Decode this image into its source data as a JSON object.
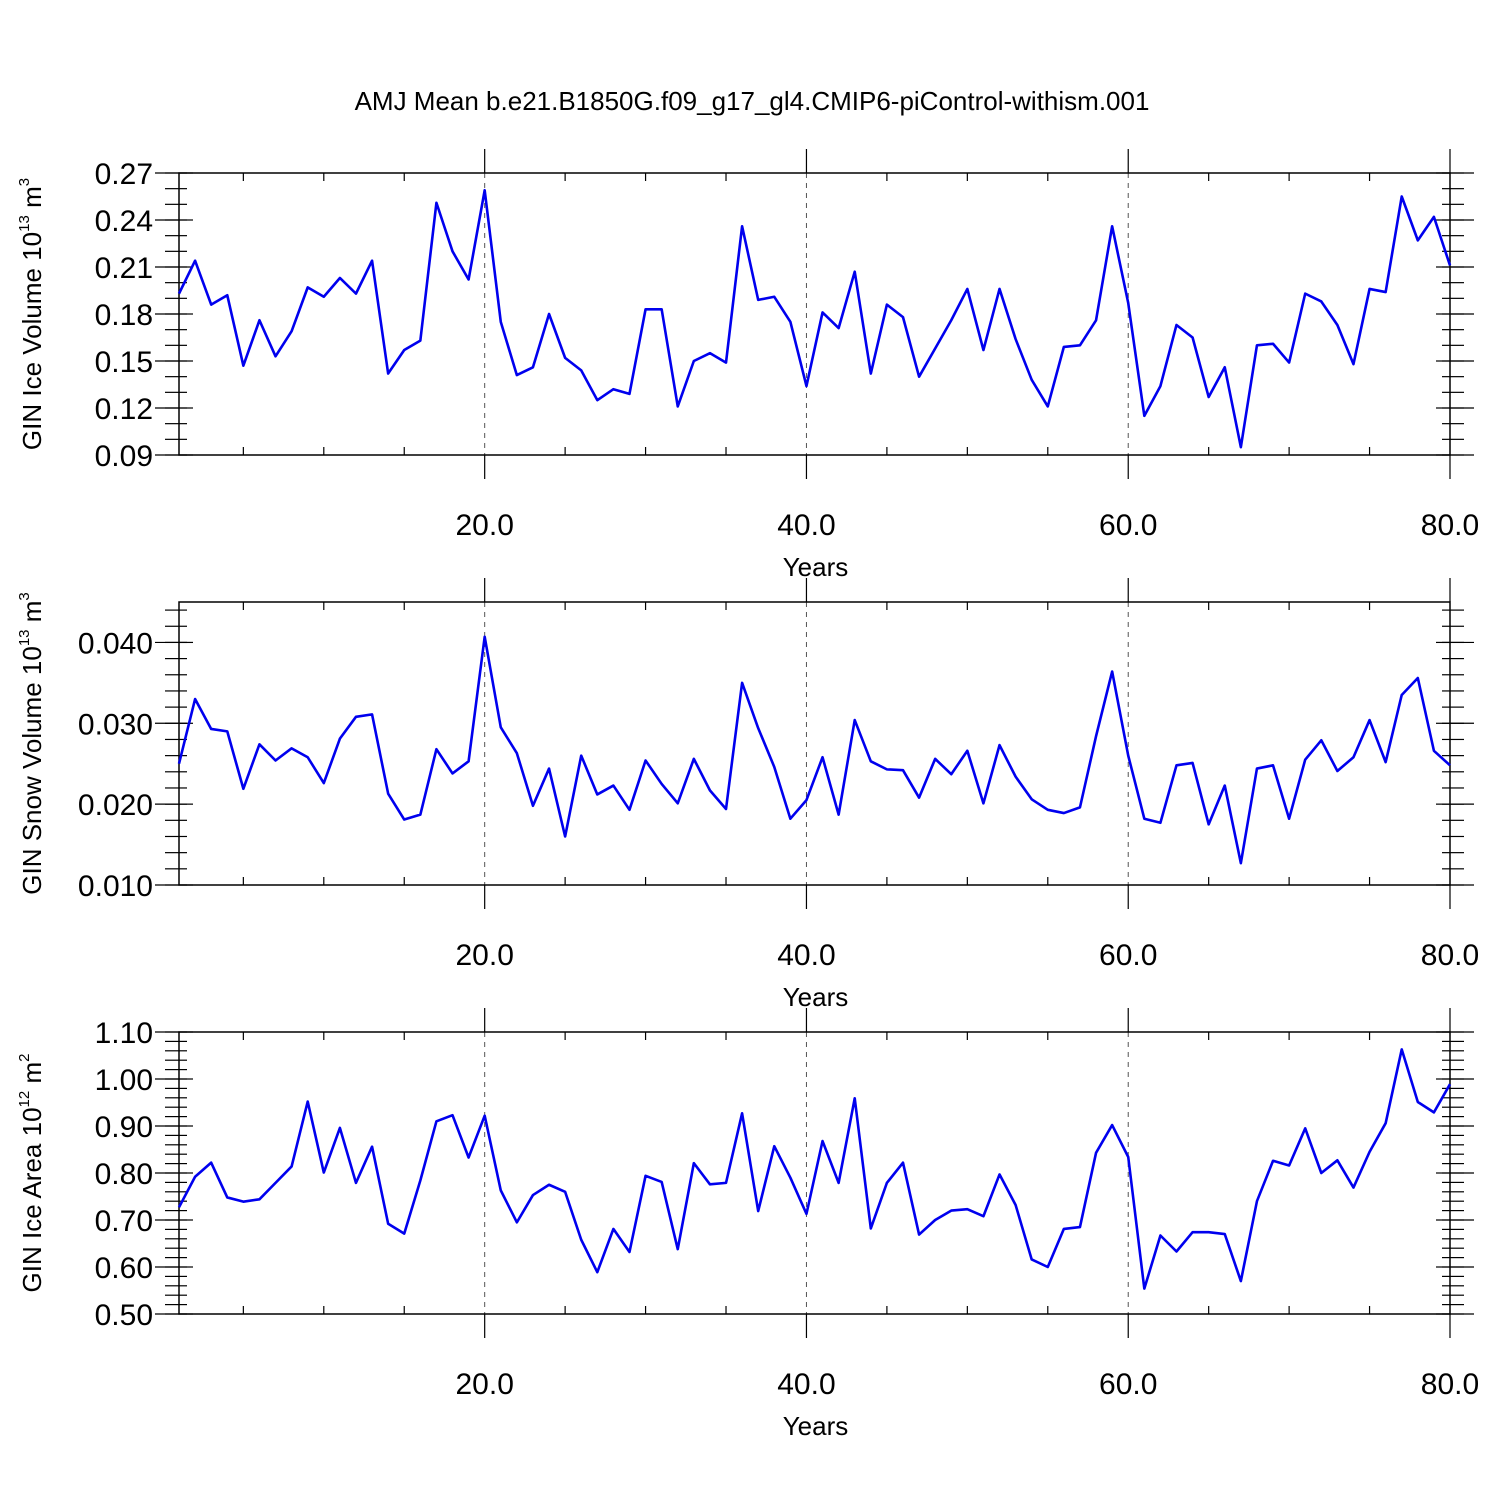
{
  "chart_data": {
    "type": "line",
    "title": "AMJ Mean b.e21.B1850G.f09_g17_gl4.CMIP6-piControl-withism.001",
    "line_color": "#0000ee",
    "grid": "dashed vertical lines at major x ticks",
    "panels": [
      {
        "ylabel": "GIN Ice Volume 10",
        "ylabel_exp": "13",
        "ylabel_unit": " m",
        "ylabel_unit_exp": "3",
        "xlabel": "Years",
        "xlim": [
          1,
          80
        ],
        "ylim": [
          0.09,
          0.27
        ],
        "xticks": [
          20,
          40,
          60,
          80
        ],
        "xtick_labels": [
          "20.0",
          "40.0",
          "60.0",
          "80.0"
        ],
        "yticks": [
          0.09,
          0.12,
          0.15,
          0.18,
          0.21,
          0.24,
          0.27
        ],
        "ytick_labels": [
          "0.09",
          "0.12",
          "0.15",
          "0.18",
          "0.21",
          "0.24",
          "0.27"
        ],
        "yminor_step": 0.01,
        "y": [
          0.193,
          0.214,
          0.186,
          0.192,
          0.147,
          0.176,
          0.153,
          0.169,
          0.197,
          0.191,
          0.203,
          0.193,
          0.214,
          0.142,
          0.157,
          0.163,
          0.251,
          0.22,
          0.202,
          0.259,
          0.175,
          0.141,
          0.146,
          0.18,
          0.152,
          0.144,
          0.125,
          0.132,
          0.129,
          0.183,
          0.183,
          0.121,
          0.15,
          0.155,
          0.149,
          0.236,
          0.189,
          0.191,
          0.175,
          0.134,
          0.181,
          0.171,
          0.207,
          0.142,
          0.186,
          0.178,
          0.14,
          0.158,
          0.176,
          0.196,
          0.157,
          0.196,
          0.164,
          0.138,
          0.121,
          0.159,
          0.16,
          0.176,
          0.236,
          0.187,
          0.115,
          0.134,
          0.173,
          0.165,
          0.127,
          0.146,
          0.095,
          0.16,
          0.161,
          0.149,
          0.193,
          0.188,
          0.173,
          0.148,
          0.196,
          0.194,
          0.255,
          0.227,
          0.242,
          0.211
        ]
      },
      {
        "ylabel": "GIN Snow Volume 10",
        "ylabel_exp": "13",
        "ylabel_unit": " m",
        "ylabel_unit_exp": "3",
        "xlabel": "Years",
        "xlim": [
          1,
          80
        ],
        "ylim": [
          0.01,
          0.045
        ],
        "xticks": [
          20,
          40,
          60,
          80
        ],
        "xtick_labels": [
          "20.0",
          "40.0",
          "60.0",
          "80.0"
        ],
        "yticks": [
          0.01,
          0.02,
          0.03,
          0.04
        ],
        "ytick_labels": [
          "0.010",
          "0.020",
          "0.030",
          "0.040"
        ],
        "yminor_step": 0.002,
        "y": [
          0.025,
          0.033,
          0.0293,
          0.029,
          0.0219,
          0.0274,
          0.0254,
          0.0269,
          0.0258,
          0.0226,
          0.0281,
          0.0308,
          0.0311,
          0.0213,
          0.0181,
          0.0187,
          0.0268,
          0.0238,
          0.0253,
          0.0407,
          0.0295,
          0.0263,
          0.0198,
          0.0244,
          0.016,
          0.026,
          0.0212,
          0.0223,
          0.0193,
          0.0254,
          0.0225,
          0.0201,
          0.0256,
          0.0217,
          0.0194,
          0.035,
          0.0294,
          0.0246,
          0.0182,
          0.0205,
          0.0258,
          0.0187,
          0.0304,
          0.0253,
          0.0243,
          0.0242,
          0.0208,
          0.0256,
          0.0237,
          0.0266,
          0.0201,
          0.0273,
          0.0234,
          0.0206,
          0.0193,
          0.0189,
          0.0196,
          0.0284,
          0.0364,
          0.026,
          0.0182,
          0.0177,
          0.0248,
          0.0251,
          0.0175,
          0.0223,
          0.0127,
          0.0244,
          0.0248,
          0.0182,
          0.0255,
          0.0279,
          0.0241,
          0.0258,
          0.0304,
          0.0252,
          0.0335,
          0.0356,
          0.0266,
          0.0248
        ]
      },
      {
        "ylabel": "GIN Ice Area 10",
        "ylabel_exp": "12",
        "ylabel_unit": " m",
        "ylabel_unit_exp": "2",
        "xlabel": "Years",
        "xlim": [
          1,
          80
        ],
        "ylim": [
          0.5,
          1.1
        ],
        "xticks": [
          20,
          40,
          60,
          80
        ],
        "xtick_labels": [
          "20.0",
          "40.0",
          "60.0",
          "80.0"
        ],
        "yticks": [
          0.5,
          0.6,
          0.7,
          0.8,
          0.9,
          1.0,
          1.1
        ],
        "ytick_labels": [
          "0.50",
          "0.60",
          "0.70",
          "0.80",
          "0.90",
          "1.00",
          "1.10"
        ],
        "yminor_step": 0.02,
        "y": [
          0.727,
          0.792,
          0.822,
          0.748,
          0.739,
          0.744,
          0.779,
          0.814,
          0.952,
          0.801,
          0.896,
          0.779,
          0.856,
          0.692,
          0.671,
          0.784,
          0.91,
          0.923,
          0.833,
          0.922,
          0.763,
          0.695,
          0.753,
          0.775,
          0.76,
          0.658,
          0.589,
          0.681,
          0.632,
          0.794,
          0.781,
          0.638,
          0.821,
          0.776,
          0.779,
          0.927,
          0.719,
          0.857,
          0.79,
          0.713,
          0.868,
          0.779,
          0.959,
          0.682,
          0.779,
          0.822,
          0.669,
          0.7,
          0.72,
          0.723,
          0.708,
          0.797,
          0.732,
          0.616,
          0.6,
          0.681,
          0.685,
          0.843,
          0.902,
          0.834,
          0.554,
          0.667,
          0.633,
          0.674,
          0.674,
          0.67,
          0.57,
          0.74,
          0.826,
          0.816,
          0.895,
          0.8,
          0.827,
          0.769,
          0.845,
          0.906,
          1.063,
          0.951,
          0.929,
          0.989
        ]
      }
    ]
  }
}
